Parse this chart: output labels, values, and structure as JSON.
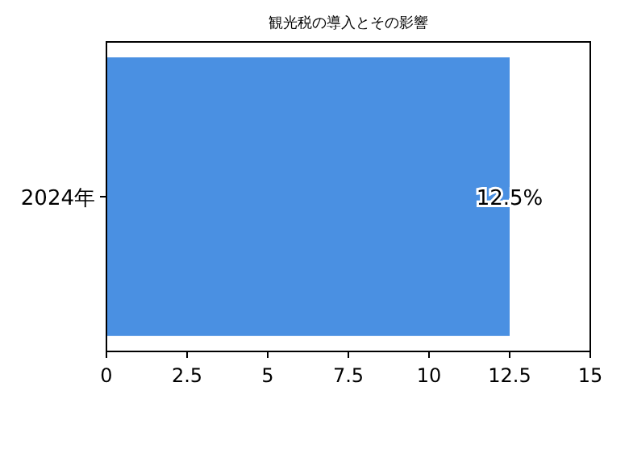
{
  "chart_data": {
    "type": "bar",
    "orientation": "horizontal",
    "title": "観光税の導入とその影響",
    "categories": [
      "2024年"
    ],
    "values": [
      12.5
    ],
    "color": "#4a90e2",
    "value_labels": [
      "12.5%"
    ],
    "xlim": [
      0,
      15
    ],
    "xticks": [
      0,
      2.5,
      5,
      7.5,
      10,
      12.5,
      15
    ]
  }
}
